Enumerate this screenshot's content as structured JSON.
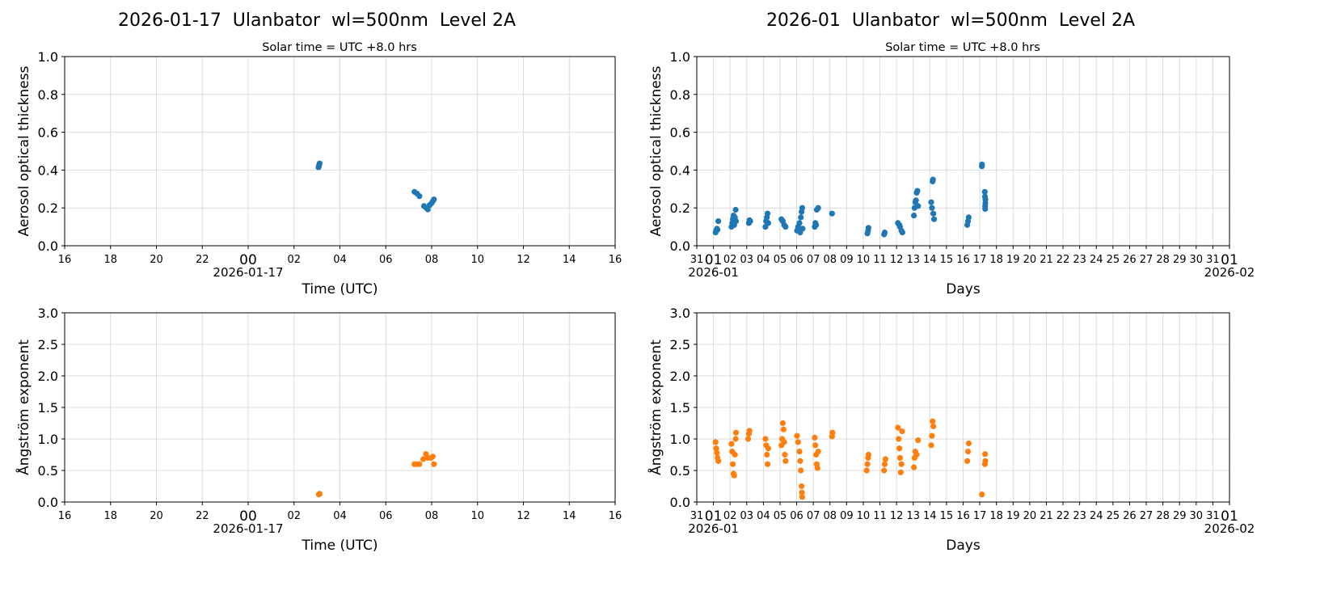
{
  "colors": {
    "aod": "#1f77b4",
    "angstrom": "#ff7f0e",
    "grid": "#dcdcdc"
  },
  "chart_data": [
    {
      "type": "scatter",
      "panel": "daily-aod",
      "title": "2026-01-17  Ulanbator  wl=500nm  Level 2A",
      "subtitle": "Solar time = UTC +8.0 hrs",
      "xlabel": "Time (UTC)",
      "ylabel": "Aerosol optical thickness",
      "xlim": [
        "2026-01-16T16:00",
        "2026-01-17T16:00"
      ],
      "xtick_labels": [
        "16",
        "18",
        "20",
        "22",
        "00",
        "02",
        "04",
        "06",
        "08",
        "10",
        "12",
        "14",
        "16"
      ],
      "x_date_label": "2026-01-17",
      "ylim": [
        0,
        1.0
      ],
      "yticks": [
        "0.0",
        "0.2",
        "0.4",
        "0.6",
        "0.8",
        "1.0"
      ],
      "grid": true,
      "points": [
        [
          "2026-01-17T03:04",
          0.415
        ],
        [
          "2026-01-17T03:05",
          0.42
        ],
        [
          "2026-01-17T03:06",
          0.43
        ],
        [
          "2026-01-17T03:07",
          0.435
        ],
        [
          "2026-01-17T07:15",
          0.285
        ],
        [
          "2026-01-17T07:22",
          0.275
        ],
        [
          "2026-01-17T07:28",
          0.262
        ],
        [
          "2026-01-17T07:40",
          0.21
        ],
        [
          "2026-01-17T07:46",
          0.2
        ],
        [
          "2026-01-17T07:50",
          0.192
        ],
        [
          "2026-01-17T07:55",
          0.215
        ],
        [
          "2026-01-17T08:00",
          0.225
        ],
        [
          "2026-01-17T08:03",
          0.235
        ],
        [
          "2026-01-17T08:06",
          0.245
        ]
      ]
    },
    {
      "type": "scatter",
      "panel": "monthly-aod",
      "title": "2026-01  Ulanbator  wl=500nm  Level 2A",
      "subtitle": "Solar time = UTC +8.0 hrs",
      "xlabel": "Days",
      "ylabel": "Aerosol optical thickness",
      "xlim": [
        "2025-12-31T00:00",
        "2026-02-01T00:00"
      ],
      "xtick_labels": [
        "31",
        "01",
        "02",
        "03",
        "04",
        "05",
        "06",
        "07",
        "08",
        "09",
        "10",
        "11",
        "12",
        "13",
        "14",
        "15",
        "16",
        "17",
        "18",
        "19",
        "20",
        "21",
        "22",
        "23",
        "24",
        "25",
        "26",
        "27",
        "28",
        "29",
        "30",
        "31",
        "01"
      ],
      "x_date_labels": [
        "2026-01",
        "2026-02"
      ],
      "ylim": [
        0,
        1.0
      ],
      "yticks": [
        "0.0",
        "0.2",
        "0.4",
        "0.6",
        "0.8",
        "1.0"
      ],
      "grid": true,
      "points": [
        [
          "2026-01-01T03:00",
          0.07
        ],
        [
          "2026-01-01T04:00",
          0.08
        ],
        [
          "2026-01-01T05:00",
          0.09
        ],
        [
          "2026-01-01T06:00",
          0.085
        ],
        [
          "2026-01-01T07:00",
          0.13
        ],
        [
          "2026-01-02T02:00",
          0.1
        ],
        [
          "2026-01-02T03:00",
          0.12
        ],
        [
          "2026-01-02T04:00",
          0.14
        ],
        [
          "2026-01-02T05:00",
          0.16
        ],
        [
          "2026-01-02T06:00",
          0.11
        ],
        [
          "2026-01-02T07:00",
          0.15
        ],
        [
          "2026-01-02T08:00",
          0.19
        ],
        [
          "2026-01-02T08:30",
          0.13
        ],
        [
          "2026-01-03T03:00",
          0.12
        ],
        [
          "2026-01-03T04:00",
          0.135
        ],
        [
          "2026-01-03T05:00",
          0.13
        ],
        [
          "2026-01-04T03:00",
          0.1
        ],
        [
          "2026-01-04T04:00",
          0.13
        ],
        [
          "2026-01-04T05:00",
          0.15
        ],
        [
          "2026-01-04T06:00",
          0.17
        ],
        [
          "2026-01-04T07:00",
          0.12
        ],
        [
          "2026-01-05T02:00",
          0.14
        ],
        [
          "2026-01-05T04:00",
          0.13
        ],
        [
          "2026-01-05T06:00",
          0.11
        ],
        [
          "2026-01-05T08:00",
          0.1
        ],
        [
          "2026-01-06T00:30",
          0.08
        ],
        [
          "2026-01-06T02:00",
          0.1
        ],
        [
          "2026-01-06T04:00",
          0.12
        ],
        [
          "2026-01-06T05:00",
          0.07
        ],
        [
          "2026-01-06T06:00",
          0.15
        ],
        [
          "2026-01-06T07:00",
          0.18
        ],
        [
          "2026-01-06T08:00",
          0.2
        ],
        [
          "2026-01-06T08:30",
          0.09
        ],
        [
          "2026-01-07T02:00",
          0.1
        ],
        [
          "2026-01-07T03:00",
          0.12
        ],
        [
          "2026-01-07T04:00",
          0.11
        ],
        [
          "2026-01-07T05:00",
          0.19
        ],
        [
          "2026-01-07T07:00",
          0.2
        ],
        [
          "2026-01-08T03:00",
          0.17
        ],
        [
          "2026-01-10T06:00",
          0.065
        ],
        [
          "2026-01-10T07:00",
          0.08
        ],
        [
          "2026-01-10T07:30",
          0.095
        ],
        [
          "2026-01-11T06:00",
          0.06
        ],
        [
          "2026-01-11T07:00",
          0.07
        ],
        [
          "2026-01-12T02:00",
          0.12
        ],
        [
          "2026-01-12T04:00",
          0.11
        ],
        [
          "2026-01-12T05:00",
          0.1
        ],
        [
          "2026-01-12T07:00",
          0.08
        ],
        [
          "2026-01-12T08:30",
          0.07
        ],
        [
          "2026-01-13T01:00",
          0.16
        ],
        [
          "2026-01-13T02:00",
          0.2
        ],
        [
          "2026-01-13T03:00",
          0.23
        ],
        [
          "2026-01-13T04:00",
          0.24
        ],
        [
          "2026-01-13T05:00",
          0.28
        ],
        [
          "2026-01-13T06:00",
          0.29
        ],
        [
          "2026-01-13T07:00",
          0.21
        ],
        [
          "2026-01-14T02:00",
          0.23
        ],
        [
          "2026-01-14T03:00",
          0.2
        ],
        [
          "2026-01-14T04:00",
          0.34
        ],
        [
          "2026-01-14T04:30",
          0.35
        ],
        [
          "2026-01-14T05:00",
          0.17
        ],
        [
          "2026-01-14T06:00",
          0.14
        ],
        [
          "2026-01-16T06:00",
          0.11
        ],
        [
          "2026-01-16T07:00",
          0.13
        ],
        [
          "2026-01-16T08:00",
          0.15
        ],
        [
          "2026-01-17T03:05",
          0.42
        ],
        [
          "2026-01-17T03:07",
          0.43
        ],
        [
          "2026-01-17T07:15",
          0.285
        ],
        [
          "2026-01-17T07:28",
          0.26
        ],
        [
          "2026-01-17T07:40",
          0.21
        ],
        [
          "2026-01-17T07:50",
          0.195
        ],
        [
          "2026-01-17T08:00",
          0.225
        ],
        [
          "2026-01-17T08:06",
          0.245
        ]
      ]
    },
    {
      "type": "scatter",
      "panel": "daily-angstrom",
      "xlabel": "Time (UTC)",
      "ylabel": "Ångström exponent",
      "xlim": [
        "2026-01-16T16:00",
        "2026-01-17T16:00"
      ],
      "xtick_labels": [
        "16",
        "18",
        "20",
        "22",
        "00",
        "02",
        "04",
        "06",
        "08",
        "10",
        "12",
        "14",
        "16"
      ],
      "x_date_label": "2026-01-17",
      "ylim": [
        0,
        3.0
      ],
      "yticks": [
        "0.0",
        "0.5",
        "1.0",
        "1.5",
        "2.0",
        "2.5",
        "3.0"
      ],
      "grid": true,
      "points": [
        [
          "2026-01-17T03:05",
          0.12
        ],
        [
          "2026-01-17T03:07",
          0.13
        ],
        [
          "2026-01-17T07:15",
          0.6
        ],
        [
          "2026-01-17T07:22",
          0.6
        ],
        [
          "2026-01-17T07:28",
          0.6
        ],
        [
          "2026-01-17T07:38",
          0.68
        ],
        [
          "2026-01-17T07:45",
          0.76
        ],
        [
          "2026-01-17T07:50",
          0.7
        ],
        [
          "2026-01-17T07:58",
          0.7
        ],
        [
          "2026-01-17T08:03",
          0.72
        ],
        [
          "2026-01-17T08:06",
          0.6
        ]
      ]
    },
    {
      "type": "scatter",
      "panel": "monthly-angstrom",
      "xlabel": "Days",
      "ylabel": "Ångström exponent",
      "xlim": [
        "2025-12-31T00:00",
        "2026-02-01T00:00"
      ],
      "xtick_labels": [
        "31",
        "01",
        "02",
        "03",
        "04",
        "05",
        "06",
        "07",
        "08",
        "09",
        "10",
        "11",
        "12",
        "13",
        "14",
        "15",
        "16",
        "17",
        "18",
        "19",
        "20",
        "21",
        "22",
        "23",
        "24",
        "25",
        "26",
        "27",
        "28",
        "29",
        "30",
        "31",
        "01"
      ],
      "x_date_labels": [
        "2026-01",
        "2026-02"
      ],
      "ylim": [
        0,
        3.0
      ],
      "yticks": [
        "0.0",
        "0.5",
        "1.0",
        "1.5",
        "2.0",
        "2.5",
        "3.0"
      ],
      "grid": true,
      "points": [
        [
          "2026-01-01T03:00",
          0.95
        ],
        [
          "2026-01-01T04:00",
          0.85
        ],
        [
          "2026-01-01T05:00",
          0.78
        ],
        [
          "2026-01-01T06:00",
          0.7
        ],
        [
          "2026-01-01T07:00",
          0.65
        ],
        [
          "2026-01-02T02:00",
          0.92
        ],
        [
          "2026-01-02T03:00",
          0.8
        ],
        [
          "2026-01-02T04:00",
          0.6
        ],
        [
          "2026-01-02T05:00",
          0.45
        ],
        [
          "2026-01-02T06:00",
          0.42
        ],
        [
          "2026-01-02T07:00",
          0.75
        ],
        [
          "2026-01-02T08:00",
          1.0
        ],
        [
          "2026-01-02T08:30",
          1.1
        ],
        [
          "2026-01-03T02:00",
          1.0
        ],
        [
          "2026-01-03T03:00",
          1.08
        ],
        [
          "2026-01-03T04:00",
          1.13
        ],
        [
          "2026-01-04T03:00",
          1.0
        ],
        [
          "2026-01-04T04:00",
          0.9
        ],
        [
          "2026-01-04T05:00",
          0.75
        ],
        [
          "2026-01-04T06:00",
          0.6
        ],
        [
          "2026-01-04T07:00",
          0.85
        ],
        [
          "2026-01-05T02:00",
          0.9
        ],
        [
          "2026-01-05T03:00",
          1.0
        ],
        [
          "2026-01-05T04:00",
          1.25
        ],
        [
          "2026-01-05T05:00",
          1.15
        ],
        [
          "2026-01-05T06:00",
          0.95
        ],
        [
          "2026-01-05T07:00",
          0.75
        ],
        [
          "2026-01-05T08:00",
          0.65
        ],
        [
          "2026-01-06T00:30",
          1.05
        ],
        [
          "2026-01-06T02:00",
          0.95
        ],
        [
          "2026-01-06T04:00",
          0.8
        ],
        [
          "2026-01-06T05:00",
          0.65
        ],
        [
          "2026-01-06T06:00",
          0.5
        ],
        [
          "2026-01-06T07:00",
          0.25
        ],
        [
          "2026-01-06T07:30",
          0.15
        ],
        [
          "2026-01-06T08:00",
          0.08
        ],
        [
          "2026-01-07T02:00",
          1.02
        ],
        [
          "2026-01-07T03:00",
          0.9
        ],
        [
          "2026-01-07T04:00",
          0.75
        ],
        [
          "2026-01-07T05:00",
          0.6
        ],
        [
          "2026-01-07T06:00",
          0.54
        ],
        [
          "2026-01-07T07:00",
          0.8
        ],
        [
          "2026-01-08T03:00",
          1.04
        ],
        [
          "2026-01-08T03:30",
          1.1
        ],
        [
          "2026-01-10T05:00",
          0.5
        ],
        [
          "2026-01-10T06:00",
          0.6
        ],
        [
          "2026-01-10T07:00",
          0.7
        ],
        [
          "2026-01-10T07:30",
          0.75
        ],
        [
          "2026-01-11T06:00",
          0.5
        ],
        [
          "2026-01-11T07:00",
          0.6
        ],
        [
          "2026-01-11T08:00",
          0.68
        ],
        [
          "2026-01-12T02:00",
          1.18
        ],
        [
          "2026-01-12T03:00",
          1.0
        ],
        [
          "2026-01-12T04:00",
          0.85
        ],
        [
          "2026-01-12T05:00",
          0.7
        ],
        [
          "2026-01-12T06:00",
          0.47
        ],
        [
          "2026-01-12T07:00",
          0.6
        ],
        [
          "2026-01-12T08:00",
          1.12
        ],
        [
          "2026-01-13T01:00",
          0.55
        ],
        [
          "2026-01-13T02:00",
          0.7
        ],
        [
          "2026-01-13T03:00",
          0.8
        ],
        [
          "2026-01-13T05:00",
          0.75
        ],
        [
          "2026-01-13T07:00",
          0.98
        ],
        [
          "2026-01-14T02:00",
          0.9
        ],
        [
          "2026-01-14T03:00",
          1.05
        ],
        [
          "2026-01-14T04:00",
          1.28
        ],
        [
          "2026-01-14T05:00",
          1.2
        ],
        [
          "2026-01-16T06:00",
          0.65
        ],
        [
          "2026-01-16T07:00",
          0.8
        ],
        [
          "2026-01-16T08:00",
          0.93
        ],
        [
          "2026-01-17T03:05",
          0.12
        ],
        [
          "2026-01-17T07:20",
          0.6
        ],
        [
          "2026-01-17T07:45",
          0.76
        ],
        [
          "2026-01-17T08:05",
          0.65
        ]
      ]
    }
  ]
}
